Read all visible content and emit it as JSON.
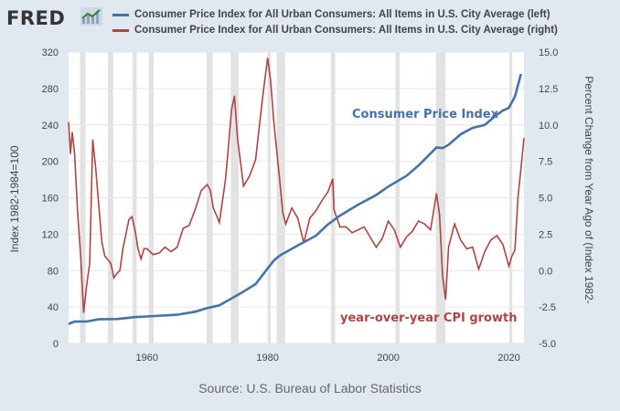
{
  "brand": {
    "logo_text": "FRED"
  },
  "legend": [
    {
      "label": "Consumer Price Index for All Urban Consumers: All Items in U.S. City Average (left)",
      "color": "#4572a7"
    },
    {
      "label": "Consumer Price Index for All Urban Consumers: All Items in U.S. City Average (right)",
      "color": "#aa4643"
    }
  ],
  "footer": {
    "source": "Source: U.S. Bureau of Labor Statistics"
  },
  "colors": {
    "background": "#e1e9f0",
    "plot_background": "#ffffff",
    "recession": "#e2e2e2",
    "cpi_line": "#4572a7",
    "growth_line": "#aa4643"
  },
  "chart_data": {
    "type": "line",
    "x_ticks": [
      "1960",
      "1980",
      "2000",
      "2020"
    ],
    "xlim": [
      1947,
      2022.5
    ],
    "left_axis": {
      "label": "Index 1982-1984=100",
      "ylim": [
        0,
        320
      ],
      "ticks": [
        "0",
        "40",
        "80",
        "120",
        "160",
        "200",
        "240",
        "280",
        "320"
      ]
    },
    "right_axis": {
      "label": "Percent Change from Year Ago of (Index 1982-",
      "ylim": [
        -5.0,
        15.0
      ],
      "ticks": [
        "-5.0",
        "-2.5",
        "0.0",
        "2.5",
        "5.0",
        "7.5",
        "10.0",
        "12.5",
        "15.0"
      ]
    },
    "grid": true,
    "recessions": [
      [
        1948.9,
        1949.8
      ],
      [
        1953.5,
        1954.4
      ],
      [
        1957.6,
        1958.3
      ],
      [
        1960.3,
        1961.1
      ],
      [
        1969.9,
        1970.9
      ],
      [
        1973.9,
        1975.2
      ],
      [
        1980.0,
        1980.5
      ],
      [
        1981.5,
        1982.9
      ],
      [
        1990.5,
        1991.2
      ],
      [
        2001.2,
        2001.9
      ],
      [
        2007.9,
        2009.5
      ],
      [
        2020.1,
        2020.4
      ]
    ],
    "annotations": [
      {
        "text": "Consumer Price Index",
        "series": "left"
      },
      {
        "text": "year-over-year CPI growth",
        "series": "right"
      }
    ],
    "series": [
      {
        "axis": "left",
        "x": [
          1947,
          1948,
          1950,
          1952,
          1955,
          1958,
          1960,
          1965,
          1968,
          1970,
          1972,
          1974,
          1976,
          1978,
          1980,
          1981,
          1982,
          1985,
          1988,
          1990,
          1992,
          1995,
          1998,
          2000,
          2003,
          2005,
          2008,
          2009,
          2010,
          2012,
          2014,
          2016,
          2018,
          2019,
          2020,
          2021,
          2022
        ],
        "values": [
          21.5,
          24.0,
          24.1,
          26.5,
          26.8,
          28.9,
          29.6,
          31.5,
          34.8,
          38.8,
          41.8,
          49.3,
          56.9,
          65.2,
          82.4,
          90.9,
          96.5,
          107.6,
          118.3,
          130.7,
          140.3,
          152.4,
          163.0,
          172.2,
          184.0,
          195.3,
          215.3,
          214.5,
          218.1,
          229.6,
          236.7,
          240.0,
          251.1,
          255.7,
          258.8,
          271.0,
          296.0
        ]
      },
      {
        "axis": "right",
        "x": [
          1947,
          1947.3,
          1947.6,
          1948,
          1948.5,
          1949,
          1949.5,
          1950,
          1950.5,
          1951,
          1951.5,
          1952,
          1952.5,
          1953,
          1954,
          1954.5,
          1955,
          1955.5,
          1956,
          1957,
          1957.5,
          1958,
          1958.5,
          1959,
          1959.5,
          1960,
          1961,
          1962,
          1963,
          1964,
          1965,
          1966,
          1967,
          1968,
          1969,
          1970,
          1970.5,
          1971,
          1972,
          1973,
          1973.5,
          1974,
          1974.5,
          1975,
          1976,
          1977,
          1978,
          1979,
          1979.5,
          1980,
          1980.5,
          1981,
          1982,
          1982.5,
          1983,
          1984,
          1985,
          1986,
          1987,
          1988,
          1989,
          1990,
          1990.8,
          1991,
          1992,
          1993,
          1994,
          1995,
          1996,
          1997,
          1998,
          1999,
          2000,
          2001,
          2002,
          2003,
          2004,
          2005,
          2006,
          2007,
          2008,
          2008.5,
          2009,
          2009.5,
          2010,
          2011,
          2012,
          2013,
          2014,
          2015,
          2016,
          2017,
          2018,
          2019,
          2020,
          2020.5,
          2021,
          2021.5,
          2022,
          2022.5
        ],
        "values": [
          10.2,
          8.0,
          9.5,
          8.0,
          4.0,
          1.0,
          -2.9,
          -1.0,
          0.5,
          9.0,
          7.0,
          4.5,
          2.0,
          1.0,
          0.5,
          -0.5,
          -0.2,
          0.0,
          1.5,
          3.5,
          3.7,
          2.8,
          1.5,
          0.8,
          1.5,
          1.5,
          1.1,
          1.2,
          1.6,
          1.3,
          1.6,
          2.9,
          3.1,
          4.2,
          5.5,
          5.9,
          5.5,
          4.3,
          3.3,
          6.2,
          8.5,
          11.0,
          12.0,
          9.1,
          5.8,
          6.5,
          7.6,
          11.3,
          13.0,
          14.6,
          13.0,
          10.3,
          6.2,
          4.0,
          3.2,
          4.3,
          3.6,
          1.9,
          3.6,
          4.1,
          4.8,
          5.4,
          6.3,
          4.2,
          3.0,
          3.0,
          2.6,
          2.8,
          3.0,
          2.3,
          1.6,
          2.2,
          3.4,
          2.8,
          1.6,
          2.3,
          2.7,
          3.4,
          3.2,
          2.8,
          5.3,
          3.8,
          -0.4,
          -2.0,
          1.6,
          3.2,
          2.1,
          1.5,
          1.6,
          0.1,
          1.3,
          2.1,
          2.4,
          1.8,
          0.3,
          1.0,
          1.4,
          5.0,
          7.0,
          9.1
        ]
      }
    ]
  }
}
